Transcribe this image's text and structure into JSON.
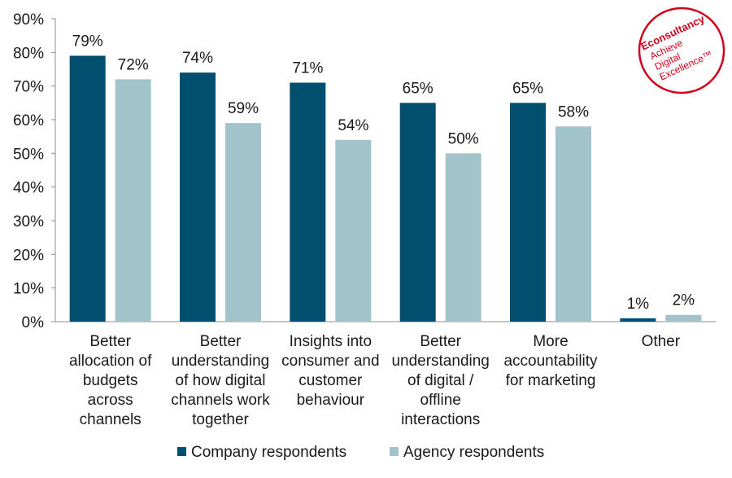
{
  "chart_data": {
    "type": "bar",
    "title": "",
    "xlabel": "",
    "ylabel": "",
    "ylim": [
      0,
      90
    ],
    "y_ticks": [
      "0%",
      "10%",
      "20%",
      "30%",
      "40%",
      "50%",
      "60%",
      "70%",
      "80%",
      "90%"
    ],
    "grid": false,
    "legend_position": "bottom",
    "categories": [
      [
        "Better",
        "allocation of",
        "budgets",
        "across",
        "channels"
      ],
      [
        "Better",
        "understanding",
        "of how digital",
        "channels work",
        "together"
      ],
      [
        "Insights into",
        "consumer and",
        "customer",
        "behaviour"
      ],
      [
        "Better",
        "understanding",
        "of digital /",
        "offline",
        "interactions"
      ],
      [
        "More",
        "accountability",
        "for marketing"
      ],
      [
        "Other"
      ]
    ],
    "series": [
      {
        "name": "Company respondents",
        "color": "#004f6e",
        "values": [
          79,
          74,
          71,
          65,
          65,
          1
        ],
        "labels": [
          "79%",
          "74%",
          "71%",
          "65%",
          "65%",
          "1%"
        ]
      },
      {
        "name": "Agency respondents",
        "color": "#a3c3ca",
        "values": [
          72,
          59,
          54,
          50,
          58,
          2
        ],
        "labels": [
          "72%",
          "59%",
          "54%",
          "50%",
          "58%",
          "2%"
        ]
      }
    ]
  },
  "logo": {
    "brand": "Econsultancy",
    "lines": [
      "Achieve",
      "Digital",
      "Excellence™"
    ],
    "color": "#d0021b"
  }
}
